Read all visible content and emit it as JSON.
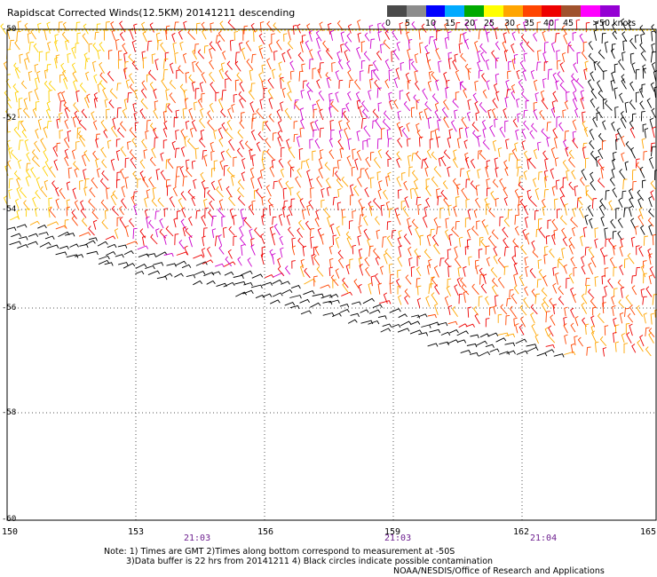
{
  "title": "Rapidscat Corrected Winds(12.5KM) 20141211 descending",
  "legend": {
    "labels": [
      "0",
      "5",
      "10",
      "15",
      "20",
      "25",
      "30",
      "35",
      "40",
      "45",
      ">50 knots"
    ],
    "colors": [
      "#4a4a4a",
      "#8c8c8c",
      "#0000ff",
      "#00aaff",
      "#00aa00",
      "#ffff00",
      "#ffa500",
      "#ff4500",
      "#ee0000",
      "#a0522d",
      "#ff00ff",
      "#9400d3"
    ]
  },
  "axes": {
    "lat_labels": [
      "-50",
      "-52",
      "-54",
      "-56",
      "-58",
      "-60"
    ],
    "lon_labels": [
      "150",
      "153",
      "156",
      "159",
      "162",
      "165"
    ]
  },
  "times": [
    "21:03",
    "21:03",
    "21:04"
  ],
  "notes": {
    "line1": "Note: 1) Times are GMT 2)Times along bottom correspond to measurement at -50S",
    "line2": "3)Data buffer is 22 hrs from 20141211 4) Black circles indicate possible contamination",
    "credit": "NOAA/NESDIS/Office of Research and Applications"
  }
}
